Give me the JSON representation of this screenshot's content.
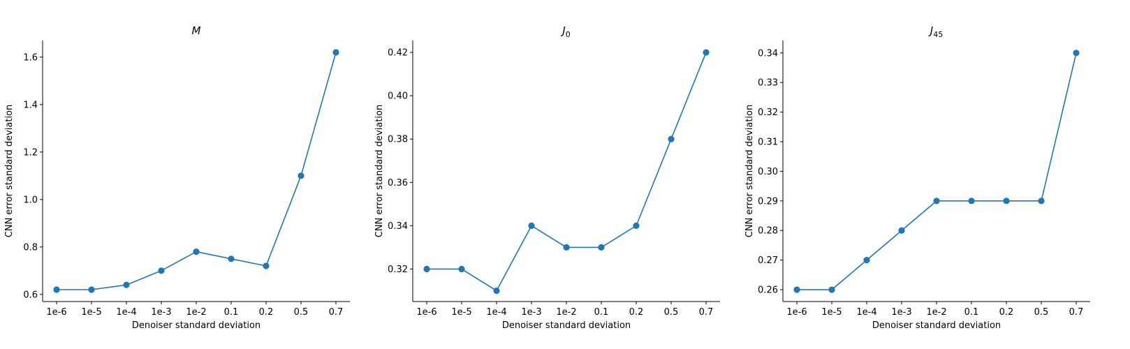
{
  "colors": {
    "series": "#1f77b4",
    "axis": "#000000"
  },
  "chart_data": [
    {
      "type": "line",
      "title_main": "M",
      "title_sub": "",
      "xlabel": "Denoiser standard deviation",
      "ylabel": "CNN error standard deviation",
      "categories": [
        "1e-6",
        "1e-5",
        "1e-4",
        "1e-3",
        "1e-2",
        "0.1",
        "0.2",
        "0.5",
        "0.7"
      ],
      "values": [
        0.62,
        0.62,
        0.64,
        0.7,
        0.78,
        0.75,
        0.72,
        1.1,
        1.62
      ],
      "yticks": [
        "0.6",
        "0.8",
        "1.0",
        "1.2",
        "1.4",
        "1.6"
      ],
      "ylim": [
        0.57,
        1.67
      ],
      "grid": false,
      "legend": "none"
    },
    {
      "type": "line",
      "title_main": "J",
      "title_sub": "0",
      "xlabel": "Denoiser standard deviation",
      "ylabel": "CNN error standard deviation",
      "categories": [
        "1e-6",
        "1e-5",
        "1e-4",
        "1e-3",
        "1e-2",
        "0.1",
        "0.2",
        "0.5",
        "0.7"
      ],
      "values": [
        0.32,
        0.32,
        0.31,
        0.34,
        0.33,
        0.33,
        0.34,
        0.38,
        0.42
      ],
      "yticks": [
        "0.32",
        "0.34",
        "0.36",
        "0.38",
        "0.40",
        "0.42"
      ],
      "ylim": [
        0.305,
        0.4255
      ],
      "grid": false,
      "legend": "none"
    },
    {
      "type": "line",
      "title_main": "J",
      "title_sub": "45",
      "xlabel": "Denoiser standard deviation",
      "ylabel": "CNN error standard deviation",
      "categories": [
        "1e-6",
        "1e-5",
        "1e-4",
        "1e-3",
        "1e-2",
        "0.1",
        "0.2",
        "0.5",
        "0.7"
      ],
      "values": [
        0.26,
        0.26,
        0.27,
        0.28,
        0.29,
        0.29,
        0.29,
        0.29,
        0.34
      ],
      "yticks": [
        "0.26",
        "0.27",
        "0.28",
        "0.29",
        "0.30",
        "0.31",
        "0.32",
        "0.33",
        "0.34"
      ],
      "ylim": [
        0.256,
        0.3442
      ],
      "grid": false,
      "legend": "none"
    }
  ]
}
